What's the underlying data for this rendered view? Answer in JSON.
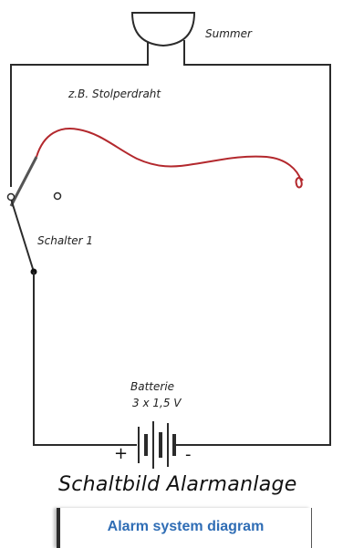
{
  "labels": {
    "buzzer": "Summer",
    "tripwire": "z.B. Stolperdraht",
    "switch": "Schalter 1",
    "battery": "Batterie",
    "voltage": "3 x 1,5 V",
    "plus": "+",
    "minus": "-"
  },
  "title": "Schaltbild Alarmanlage",
  "caption": "Alarm system diagram",
  "colors": {
    "wire": "#2b2b2b",
    "tripwire": "#b3282d",
    "caption": "#2f6db5"
  }
}
